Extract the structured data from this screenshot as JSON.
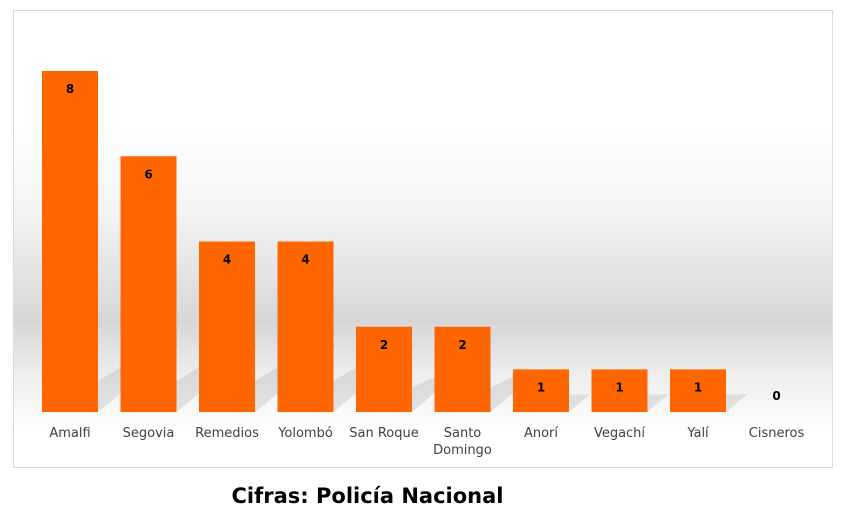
{
  "chart_data": {
    "type": "bar",
    "categories": [
      "Amalfi",
      "Segovia",
      "Remedios",
      "Yolombó",
      "San Roque",
      "Santo Domingo",
      "Anorí",
      "Vegachí",
      "Yalí",
      "Cisneros"
    ],
    "category_lines": [
      [
        "Amalfi"
      ],
      [
        "Segovia"
      ],
      [
        "Remedios"
      ],
      [
        "Yolombó"
      ],
      [
        "San Roque"
      ],
      [
        "Santo",
        "Domingo"
      ],
      [
        "Anorí"
      ],
      [
        "Vegachí"
      ],
      [
        "Yalí"
      ],
      [
        "Cisneros"
      ]
    ],
    "values": [
      8,
      6,
      4,
      4,
      2,
      2,
      1,
      1,
      1,
      0
    ],
    "ylim": [
      0,
      8
    ],
    "title": "",
    "xlabel": "",
    "ylabel": "",
    "grid": false,
    "legend": "none",
    "bar_color": "#FF6600",
    "data_labels": true
  },
  "caption": "Cifras: Policía Nacional"
}
